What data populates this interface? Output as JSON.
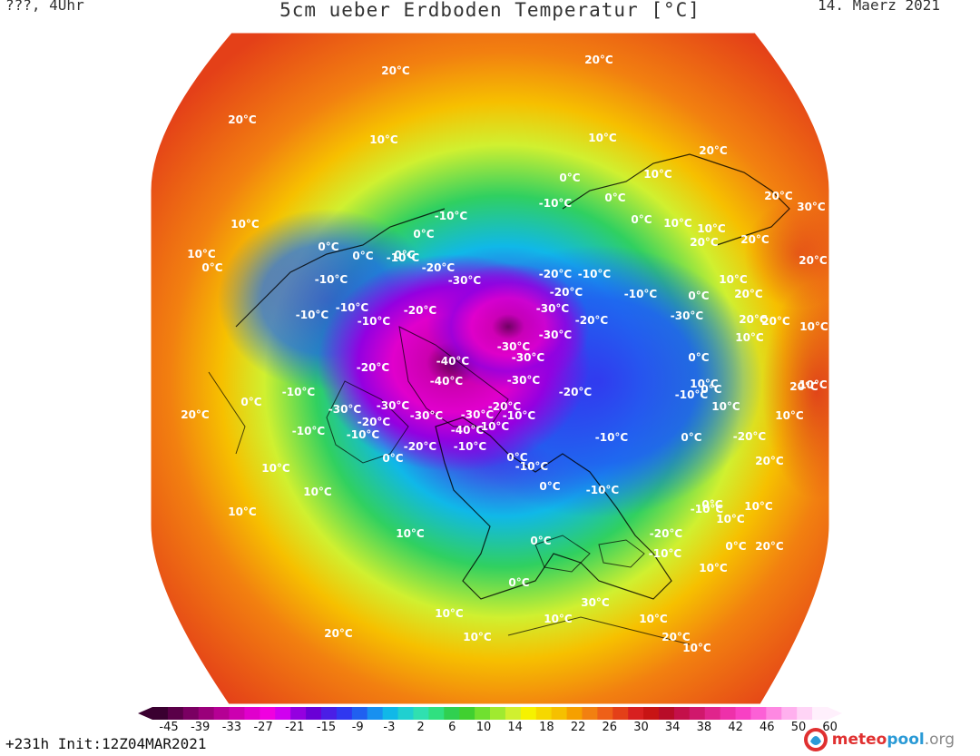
{
  "header": {
    "left": "???, 4Uhr",
    "title": "5cm ueber Erdboden Temperatur [°C]",
    "date": "14. Maerz 2021"
  },
  "footer": {
    "run": "+231h  Init:12Z04MAR2021"
  },
  "logo": {
    "part1": "meteo",
    "part2": "pool",
    "part3": ".org"
  },
  "colors": {
    "background": "#ffffff",
    "text": "#111111",
    "logo_red": "#e03030",
    "logo_blue": "#2a9ad6"
  },
  "legend": {
    "unit": "°C",
    "ticks": [
      "-45",
      "-39",
      "-33",
      "-27",
      "-21",
      "-15",
      "-9",
      "-3",
      "2",
      "6",
      "10",
      "14",
      "18",
      "22",
      "26",
      "30",
      "34",
      "38",
      "42",
      "46",
      "50",
      "60"
    ],
    "colors": [
      "#3a0030",
      "#5a0048",
      "#7a0062",
      "#9a007a",
      "#b50094",
      "#cc00b0",
      "#e000cc",
      "#f000e0",
      "#d000f0",
      "#9400e0",
      "#6a00d6",
      "#4a1ee6",
      "#3038f0",
      "#2060f0",
      "#1890f0",
      "#10b8e8",
      "#20d0d0",
      "#30e0b0",
      "#30e080",
      "#30d050",
      "#40d030",
      "#70e030",
      "#a0ea30",
      "#d0f030",
      "#f6f200",
      "#f6d800",
      "#f6c000",
      "#f6a000",
      "#f28010",
      "#ee6018",
      "#e44018",
      "#d82020",
      "#c81414",
      "#b80c28",
      "#c4104a",
      "#d0186c",
      "#e0248c",
      "#ee30aa",
      "#f840c4",
      "#fc60d6",
      "#fe88e2",
      "#ffb0ee",
      "#ffd4f6",
      "#fff0fc"
    ]
  },
  "isotherm_labels": [
    {
      "text": "20°C"
    },
    {
      "text": "20°C"
    },
    {
      "text": "20°C"
    },
    {
      "text": "10°C"
    },
    {
      "text": "10°C"
    },
    {
      "text": "20°C"
    },
    {
      "text": "20°C"
    },
    {
      "text": "30°C"
    },
    {
      "text": "0°C"
    },
    {
      "text": "-10°C"
    },
    {
      "text": "0°C"
    },
    {
      "text": "10°C"
    },
    {
      "text": "-10°C"
    },
    {
      "text": "0°C"
    },
    {
      "text": "0°C"
    },
    {
      "text": "10°C"
    },
    {
      "text": "10°C"
    },
    {
      "text": "20°C"
    },
    {
      "text": "20°C"
    },
    {
      "text": "10°C"
    },
    {
      "text": "10°C"
    },
    {
      "text": "0°C"
    },
    {
      "text": "0°C"
    },
    {
      "text": "-10°C"
    },
    {
      "text": "-10°C"
    },
    {
      "text": "-20°C"
    },
    {
      "text": "-30°C"
    },
    {
      "text": "-20°C"
    },
    {
      "text": "-10°C"
    },
    {
      "text": "-20°C"
    },
    {
      "text": "-30°C"
    },
    {
      "text": "-20°C"
    },
    {
      "text": "-30°C"
    },
    {
      "text": "-10°C"
    },
    {
      "text": "-10°C"
    },
    {
      "text": "-10°C"
    },
    {
      "text": "-10°C"
    },
    {
      "text": "-20°C"
    },
    {
      "text": "-30°C"
    },
    {
      "text": "0°C"
    },
    {
      "text": "10°C"
    },
    {
      "text": "20°C"
    },
    {
      "text": "20°C"
    },
    {
      "text": "-30°C"
    },
    {
      "text": "-30°C"
    },
    {
      "text": "-40°C"
    },
    {
      "text": "-40°C"
    },
    {
      "text": "-30°C"
    },
    {
      "text": "-20°C"
    },
    {
      "text": "-10°C"
    },
    {
      "text": "0°C"
    },
    {
      "text": "-20°C"
    },
    {
      "text": "0°C"
    },
    {
      "text": "-30°C"
    },
    {
      "text": "-30°C"
    },
    {
      "text": "-30°C"
    },
    {
      "text": "-30°C"
    },
    {
      "text": "-20°C"
    },
    {
      "text": "-40°C"
    },
    {
      "text": "-20°C"
    },
    {
      "text": "-10°C"
    },
    {
      "text": "0°C"
    },
    {
      "text": "-20°C"
    },
    {
      "text": "-10°C"
    },
    {
      "text": "20°C"
    },
    {
      "text": "-10°C"
    },
    {
      "text": "-10°C"
    },
    {
      "text": "-10°C"
    },
    {
      "text": "-10°C"
    },
    {
      "text": "0°C"
    },
    {
      "text": "-20°C"
    },
    {
      "text": "-10°C"
    },
    {
      "text": "10°C"
    },
    {
      "text": "10°C"
    },
    {
      "text": "-10°C"
    },
    {
      "text": "0°C"
    },
    {
      "text": "-10°C"
    },
    {
      "text": "0°C"
    },
    {
      "text": "0°C"
    },
    {
      "text": "10°C"
    },
    {
      "text": "20°C"
    },
    {
      "text": "10°C"
    },
    {
      "text": "0°C"
    },
    {
      "text": "-10°C"
    },
    {
      "text": "-20°C"
    },
    {
      "text": "-10°C"
    },
    {
      "text": "0°C"
    },
    {
      "text": "20°C"
    },
    {
      "text": "10°C"
    },
    {
      "text": "0°C"
    },
    {
      "text": "10°C"
    },
    {
      "text": "10°C"
    },
    {
      "text": "10°C"
    },
    {
      "text": "10°C"
    },
    {
      "text": "20°C"
    },
    {
      "text": "10°C"
    },
    {
      "text": "10°C"
    },
    {
      "text": "10°C"
    },
    {
      "text": "30°C"
    },
    {
      "text": "10°C"
    },
    {
      "text": "20°C"
    },
    {
      "text": "10°C"
    },
    {
      "text": "20°C"
    },
    {
      "text": "10°C"
    },
    {
      "text": "10°C"
    },
    {
      "text": "20°C"
    },
    {
      "text": "10°C"
    },
    {
      "text": "20°C"
    },
    {
      "text": "0°C"
    },
    {
      "text": "0°C"
    },
    {
      "text": "10°C"
    },
    {
      "text": "0°C"
    }
  ]
}
